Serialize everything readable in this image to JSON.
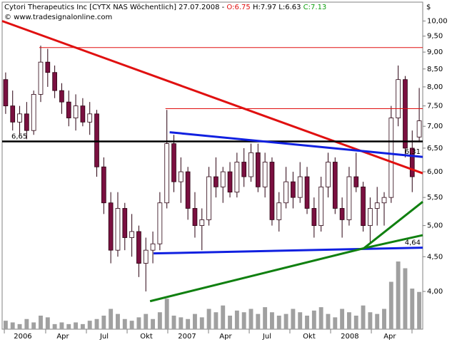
{
  "chart_data": {
    "type": "candlestick",
    "header": {
      "title": "Cytori Therapeutics Inc [CYTX NAS  Wöchentlich] 27.07.2008 -",
      "open": "O:6.75",
      "high_low": "H:7.97 L:6.63",
      "close": "C:7.13",
      "source": "© www.tradesignalonline.com"
    },
    "y_unit": "$",
    "log_scale": true,
    "grid": false,
    "up_color": "#ffffff",
    "down_color": "#7a1040",
    "outline_color": "#2a0010",
    "volume_color": "#a0a0a0",
    "xlim": [
      -0.5,
      59.5
    ],
    "ylim": [
      3.52,
      10.66
    ],
    "yticks": [
      {
        "value": 4,
        "label": "4,00"
      },
      {
        "value": 4.5,
        "label": "4,50"
      },
      {
        "value": 5,
        "label": "5,00"
      },
      {
        "value": 5.5,
        "label": "5,50"
      },
      {
        "value": 6,
        "label": "6,00"
      },
      {
        "value": 6.5,
        "label": "6,50"
      },
      {
        "value": 7,
        "label": "7,00"
      },
      {
        "value": 7.5,
        "label": "7,50"
      },
      {
        "value": 8,
        "label": "8,00"
      },
      {
        "value": 8.5,
        "label": "8,50"
      },
      {
        "value": 9,
        "label": "9,00"
      },
      {
        "value": 9.5,
        "label": "9,50"
      },
      {
        "value": 10,
        "label": "10,00"
      }
    ],
    "xticks": [
      -0.19,
      5.71,
      11.52,
      17.33,
      23.13,
      28.94,
      34.75,
      40.55,
      46.36,
      52.17,
      57.97
    ],
    "xlabels": [
      {
        "value": 2.45,
        "label": "2006"
      },
      {
        "value": 8.16,
        "label": "Apr"
      },
      {
        "value": 14.07,
        "label": "Jul"
      },
      {
        "value": 20.08,
        "label": "Okt"
      },
      {
        "value": 25.88,
        "label": "2007"
      },
      {
        "value": 31.38,
        "label": "Apr"
      },
      {
        "value": 37.29,
        "label": "Jul"
      },
      {
        "value": 43.3,
        "label": "Okt"
      },
      {
        "value": 49.1,
        "label": "2008"
      },
      {
        "value": 54.8,
        "label": "Apr"
      }
    ],
    "values": [
      [
        8.2,
        8.4,
        7.3,
        7.5
      ],
      [
        7.5,
        7.9,
        6.9,
        7.1
      ],
      [
        7.1,
        7.5,
        6.8,
        7.3
      ],
      [
        7.3,
        7.6,
        6.7,
        6.9
      ],
      [
        6.9,
        7.9,
        6.8,
        7.8
      ],
      [
        7.8,
        9.2,
        7.6,
        8.7
      ],
      [
        8.7,
        9.1,
        8.0,
        8.4
      ],
      [
        8.4,
        8.6,
        7.7,
        7.9
      ],
      [
        7.9,
        8.1,
        7.3,
        7.6
      ],
      [
        7.6,
        7.9,
        7.0,
        7.2
      ],
      [
        7.2,
        7.8,
        6.9,
        7.5
      ],
      [
        7.5,
        7.7,
        7.0,
        7.1
      ],
      [
        7.1,
        7.6,
        6.8,
        7.3
      ],
      [
        7.3,
        7.4,
        5.9,
        6.1
      ],
      [
        6.1,
        6.3,
        5.2,
        5.4
      ],
      [
        5.4,
        5.6,
        4.4,
        4.6
      ],
      [
        4.6,
        5.6,
        4.5,
        5.3
      ],
      [
        5.3,
        5.4,
        4.6,
        4.8
      ],
      [
        4.8,
        5.2,
        4.5,
        4.9
      ],
      [
        4.9,
        5.0,
        4.2,
        4.4
      ],
      [
        4.4,
        4.8,
        4.0,
        4.6
      ],
      [
        4.6,
        4.9,
        4.4,
        4.7
      ],
      [
        4.7,
        5.6,
        4.6,
        5.4
      ],
      [
        5.4,
        7.4,
        5.3,
        6.6
      ],
      [
        6.6,
        6.8,
        5.6,
        5.8
      ],
      [
        5.8,
        6.3,
        5.4,
        6.0
      ],
      [
        6.0,
        6.1,
        5.1,
        5.3
      ],
      [
        5.3,
        5.6,
        4.8,
        5.0
      ],
      [
        5.0,
        5.3,
        4.6,
        5.1
      ],
      [
        5.1,
        6.1,
        5.0,
        5.9
      ],
      [
        5.9,
        6.3,
        5.5,
        5.7
      ],
      [
        5.7,
        6.1,
        5.4,
        6.0
      ],
      [
        6.0,
        6.2,
        5.5,
        5.6
      ],
      [
        5.6,
        6.4,
        5.5,
        6.2
      ],
      [
        6.2,
        6.5,
        5.7,
        5.9
      ],
      [
        5.9,
        6.6,
        5.8,
        6.4
      ],
      [
        6.4,
        6.6,
        5.6,
        5.7
      ],
      [
        5.7,
        6.4,
        5.5,
        6.2
      ],
      [
        6.2,
        6.3,
        5.0,
        5.1
      ],
      [
        5.1,
        5.6,
        4.9,
        5.4
      ],
      [
        5.4,
        6.1,
        5.3,
        5.8
      ],
      [
        5.8,
        6.0,
        5.3,
        5.5
      ],
      [
        5.5,
        6.2,
        5.4,
        5.9
      ],
      [
        5.9,
        6.1,
        5.2,
        5.3
      ],
      [
        5.3,
        5.5,
        4.8,
        5.0
      ],
      [
        5.0,
        5.9,
        4.9,
        5.7
      ],
      [
        5.7,
        6.4,
        5.5,
        6.2
      ],
      [
        6.2,
        6.3,
        5.2,
        5.3
      ],
      [
        5.3,
        5.5,
        4.8,
        5.1
      ],
      [
        5.1,
        6.1,
        5.0,
        5.9
      ],
      [
        5.9,
        6.4,
        5.6,
        5.7
      ],
      [
        5.7,
        5.8,
        4.9,
        5.0
      ],
      [
        5.0,
        5.5,
        4.7,
        5.3
      ],
      [
        5.3,
        5.7,
        5.0,
        5.4
      ],
      [
        5.4,
        5.6,
        5.0,
        5.5
      ],
      [
        5.5,
        7.5,
        5.4,
        7.2
      ],
      [
        7.2,
        8.6,
        7.0,
        8.2
      ],
      [
        8.2,
        8.3,
        6.3,
        6.5
      ],
      [
        6.5,
        6.9,
        5.6,
        5.9
      ],
      [
        6.75,
        7.97,
        6.63,
        7.13
      ]
    ],
    "volume": [
      5,
      4,
      3,
      6,
      4,
      8,
      7,
      3,
      4,
      3,
      4,
      3,
      5,
      6,
      8,
      12,
      9,
      6,
      5,
      7,
      9,
      6,
      10,
      18,
      8,
      7,
      6,
      9,
      7,
      12,
      10,
      14,
      8,
      11,
      10,
      12,
      9,
      13,
      10,
      8,
      9,
      12,
      10,
      8,
      11,
      13,
      9,
      7,
      12,
      10,
      8,
      14,
      10,
      9,
      12,
      28,
      40,
      36,
      24,
      22
    ],
    "lines": [
      {
        "color": "#e01010",
        "width": 3,
        "points": [
          [
            -0.5,
            10.0
          ],
          [
            59.5,
            5.97
          ]
        ]
      },
      {
        "color": "#e01010",
        "width": 1,
        "points": [
          [
            4.8,
            9.14
          ],
          [
            59.5,
            9.14
          ]
        ]
      },
      {
        "color": "#e01010",
        "width": 1,
        "points": [
          [
            22.8,
            7.43
          ],
          [
            59.5,
            7.43
          ]
        ]
      },
      {
        "color": "#000000",
        "width": 2.5,
        "points": [
          [
            -0.5,
            6.65
          ],
          [
            59.5,
            6.65
          ]
        ]
      },
      {
        "color": "#1020e0",
        "width": 3,
        "points": [
          [
            23.4,
            6.86
          ],
          [
            59.5,
            6.31
          ]
        ]
      },
      {
        "color": "#1020e0",
        "width": 3,
        "points": [
          [
            21.1,
            4.55
          ],
          [
            59.5,
            4.64
          ]
        ]
      },
      {
        "color": "#108010",
        "width": 3,
        "points": [
          [
            20.6,
            3.87
          ],
          [
            51.1,
            4.63
          ],
          [
            59.5,
            4.84
          ]
        ]
      },
      {
        "color": "#108010",
        "width": 3,
        "points": [
          [
            51.1,
            4.63
          ],
          [
            59.5,
            5.42
          ]
        ]
      }
    ],
    "annotations": [
      {
        "value": 6.65,
        "label": "6,65",
        "side": "left"
      },
      {
        "value": 6.31,
        "label": "6,31",
        "side": "right"
      },
      {
        "value": 4.64,
        "label": "4,64",
        "side": "right"
      }
    ]
  }
}
